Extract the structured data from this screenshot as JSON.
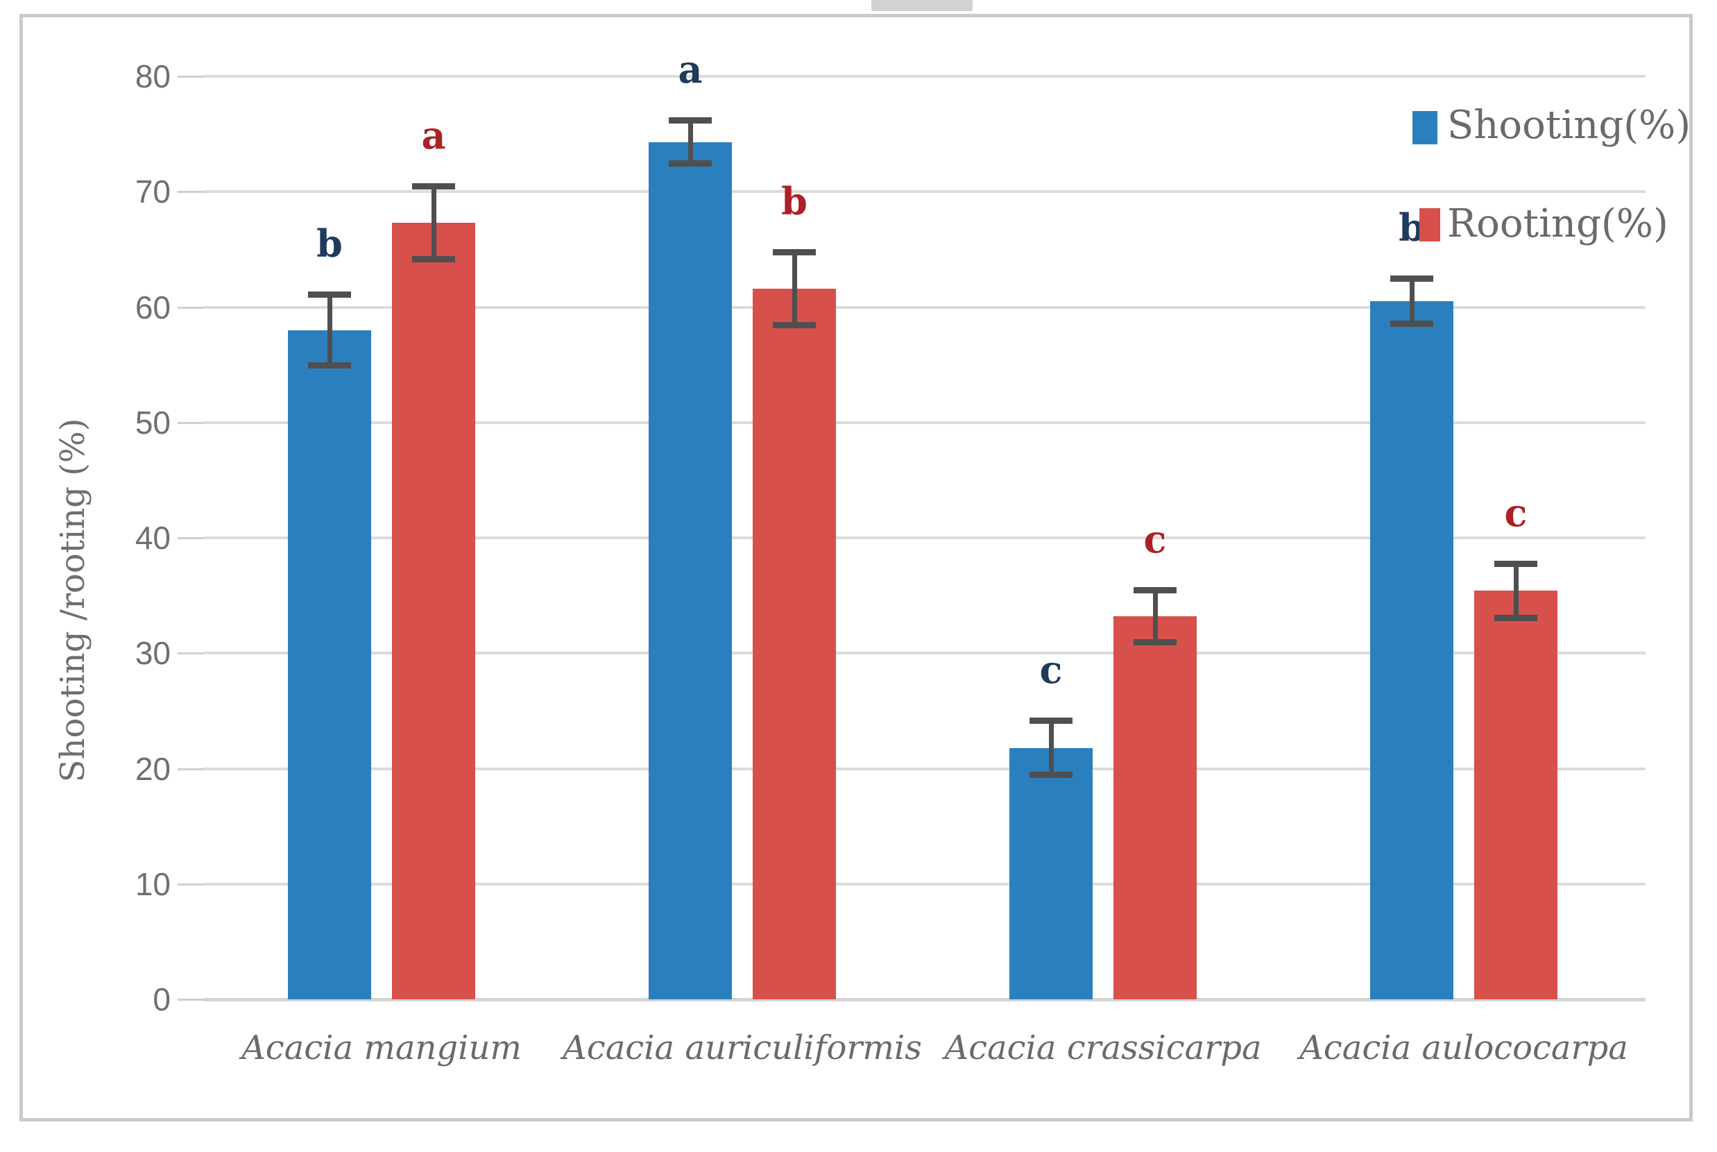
{
  "figure": {
    "background": "#ffffff",
    "frame_color": "#cacaca"
  },
  "colors": {
    "gridline": "#dbdbdb",
    "axis_line": "#d4d4d4",
    "error_bar": "#4f4f4f",
    "tick_text": "#6f6f6f",
    "label_text": "#6a6a6a"
  },
  "legend": {
    "items": [
      {
        "label": "Shooting(%)",
        "color": "#2a80bf"
      },
      {
        "label": "Rooting(%)",
        "color": "#d7504b"
      }
    ],
    "position": "top-right"
  },
  "chart_data": {
    "type": "bar",
    "title": "",
    "categories": [
      "Acacia mangium",
      "Acacia auriculiformis",
      "Acacia crassicarpa",
      "Acacia aulococarpa"
    ],
    "series": [
      {
        "name": "Shooting(%)",
        "color": "#2a80bf",
        "values": [
          58.0,
          74.3,
          21.8,
          60.5
        ],
        "errors": [
          3.1,
          1.9,
          2.4,
          2.0
        ],
        "sig_letters": [
          "b",
          "a",
          "c",
          "b"
        ],
        "letter_color": "#1e3a5c"
      },
      {
        "name": "Rooting(%)",
        "color": "#d7504b",
        "values": [
          67.3,
          61.6,
          33.2,
          35.4
        ],
        "errors": [
          3.2,
          3.2,
          2.3,
          2.4
        ],
        "sig_letters": [
          "a",
          "b",
          "c",
          "c"
        ],
        "letter_color": "#ad2026"
      }
    ],
    "xlabel": "",
    "ylabel": "Shooting /rooting (%)",
    "ylim": [
      0,
      80
    ],
    "yticks": [
      0,
      10,
      20,
      30,
      40,
      50,
      60,
      70,
      80
    ],
    "grid": true,
    "error_bars": true,
    "legend_position": "top-right"
  }
}
